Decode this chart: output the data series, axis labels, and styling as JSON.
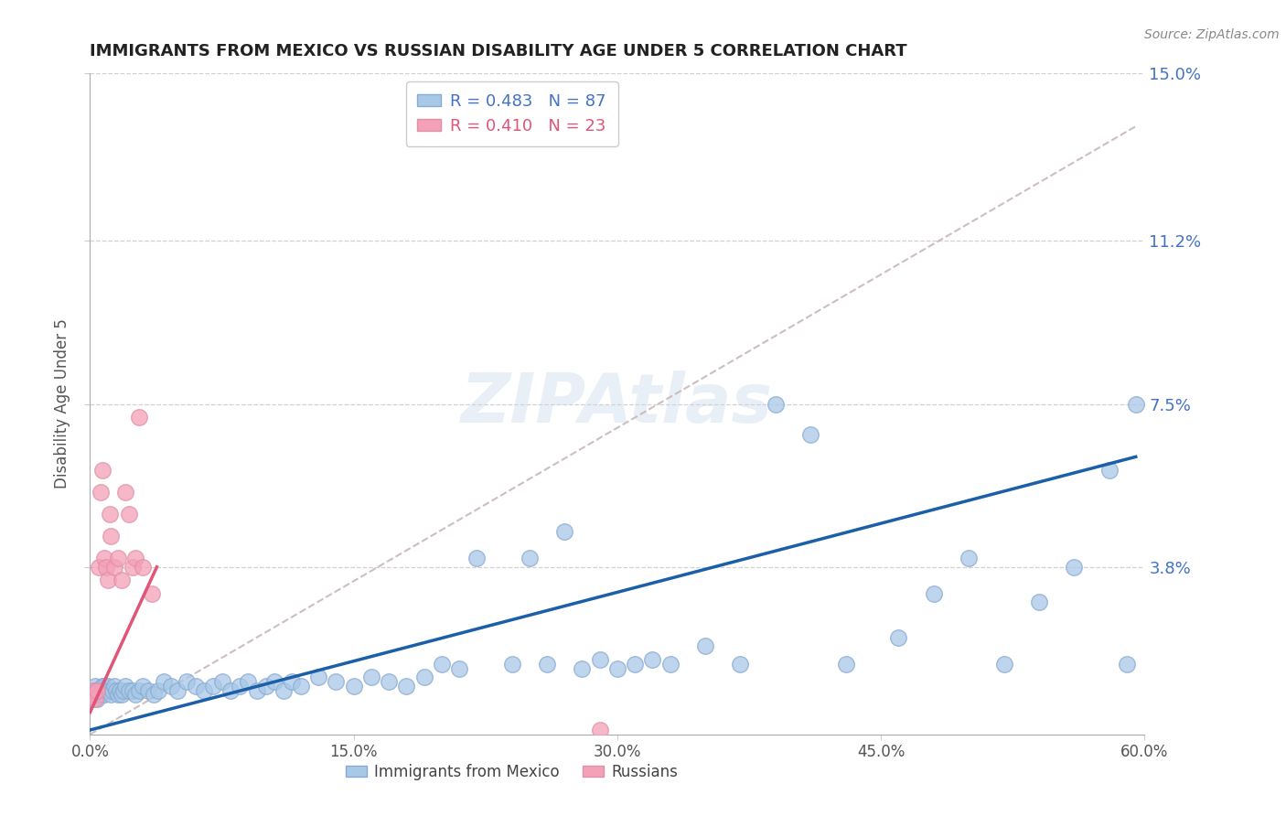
{
  "title": "IMMIGRANTS FROM MEXICO VS RUSSIAN DISABILITY AGE UNDER 5 CORRELATION CHART",
  "source": "Source: ZipAtlas.com",
  "ylabel": "Disability Age Under 5",
  "xlim": [
    0.0,
    0.6
  ],
  "ylim": [
    0.0,
    0.15
  ],
  "ytick_labels": [
    "3.8%",
    "7.5%",
    "11.2%",
    "15.0%"
  ],
  "ytick_values": [
    0.038,
    0.075,
    0.112,
    0.15
  ],
  "xtick_labels": [
    "0.0%",
    "15.0%",
    "30.0%",
    "45.0%",
    "60.0%"
  ],
  "xtick_values": [
    0.0,
    0.15,
    0.3,
    0.45,
    0.6
  ],
  "legend_labels": [
    "Immigrants from Mexico",
    "Russians"
  ],
  "mexico_color": "#a8c8e8",
  "russia_color": "#f4a0b8",
  "mexico_line_color": "#1a5fa8",
  "russia_line_color": "#e05578",
  "dashed_line_color": "#c8b8b8",
  "R_mexico": 0.483,
  "N_mexico": 87,
  "R_russia": 0.41,
  "N_russia": 23,
  "watermark": "ZIPAtlas",
  "background_color": "#ffffff",
  "mexico_scatter_x": [
    0.001,
    0.002,
    0.002,
    0.003,
    0.003,
    0.004,
    0.004,
    0.005,
    0.005,
    0.006,
    0.006,
    0.007,
    0.007,
    0.008,
    0.008,
    0.009,
    0.01,
    0.01,
    0.011,
    0.012,
    0.013,
    0.014,
    0.015,
    0.016,
    0.017,
    0.018,
    0.019,
    0.02,
    0.022,
    0.024,
    0.026,
    0.028,
    0.03,
    0.033,
    0.036,
    0.039,
    0.042,
    0.046,
    0.05,
    0.055,
    0.06,
    0.065,
    0.07,
    0.075,
    0.08,
    0.085,
    0.09,
    0.095,
    0.1,
    0.105,
    0.11,
    0.115,
    0.12,
    0.13,
    0.14,
    0.15,
    0.16,
    0.17,
    0.18,
    0.19,
    0.2,
    0.21,
    0.22,
    0.24,
    0.25,
    0.26,
    0.27,
    0.28,
    0.29,
    0.3,
    0.31,
    0.32,
    0.33,
    0.35,
    0.37,
    0.39,
    0.41,
    0.43,
    0.46,
    0.48,
    0.5,
    0.52,
    0.54,
    0.56,
    0.58,
    0.59,
    0.595
  ],
  "mexico_scatter_y": [
    0.009,
    0.01,
    0.008,
    0.011,
    0.009,
    0.01,
    0.008,
    0.01,
    0.009,
    0.01,
    0.009,
    0.011,
    0.01,
    0.009,
    0.011,
    0.01,
    0.01,
    0.011,
    0.01,
    0.009,
    0.01,
    0.011,
    0.01,
    0.009,
    0.01,
    0.009,
    0.01,
    0.011,
    0.01,
    0.01,
    0.009,
    0.01,
    0.011,
    0.01,
    0.009,
    0.01,
    0.012,
    0.011,
    0.01,
    0.012,
    0.011,
    0.01,
    0.011,
    0.012,
    0.01,
    0.011,
    0.012,
    0.01,
    0.011,
    0.012,
    0.01,
    0.012,
    0.011,
    0.013,
    0.012,
    0.011,
    0.013,
    0.012,
    0.011,
    0.013,
    0.016,
    0.015,
    0.04,
    0.016,
    0.04,
    0.016,
    0.046,
    0.015,
    0.017,
    0.015,
    0.016,
    0.017,
    0.016,
    0.02,
    0.016,
    0.075,
    0.068,
    0.016,
    0.022,
    0.032,
    0.04,
    0.016,
    0.03,
    0.038,
    0.06,
    0.016,
    0.075
  ],
  "russia_scatter_x": [
    0.001,
    0.002,
    0.003,
    0.004,
    0.005,
    0.006,
    0.007,
    0.008,
    0.009,
    0.01,
    0.011,
    0.012,
    0.014,
    0.016,
    0.018,
    0.02,
    0.022,
    0.024,
    0.026,
    0.028,
    0.03,
    0.035,
    0.29
  ],
  "russia_scatter_y": [
    0.009,
    0.01,
    0.008,
    0.01,
    0.038,
    0.055,
    0.06,
    0.04,
    0.038,
    0.035,
    0.05,
    0.045,
    0.038,
    0.04,
    0.035,
    0.055,
    0.05,
    0.038,
    0.04,
    0.072,
    0.038,
    0.032,
    0.001
  ],
  "mexico_line_x": [
    0.0,
    0.595
  ],
  "mexico_line_y": [
    0.001,
    0.063
  ],
  "russia_line_x": [
    0.0,
    0.038
  ],
  "russia_line_y": [
    0.005,
    0.038
  ],
  "dash_line_x": [
    0.0,
    0.595
  ],
  "dash_line_y": [
    0.0,
    0.138
  ]
}
